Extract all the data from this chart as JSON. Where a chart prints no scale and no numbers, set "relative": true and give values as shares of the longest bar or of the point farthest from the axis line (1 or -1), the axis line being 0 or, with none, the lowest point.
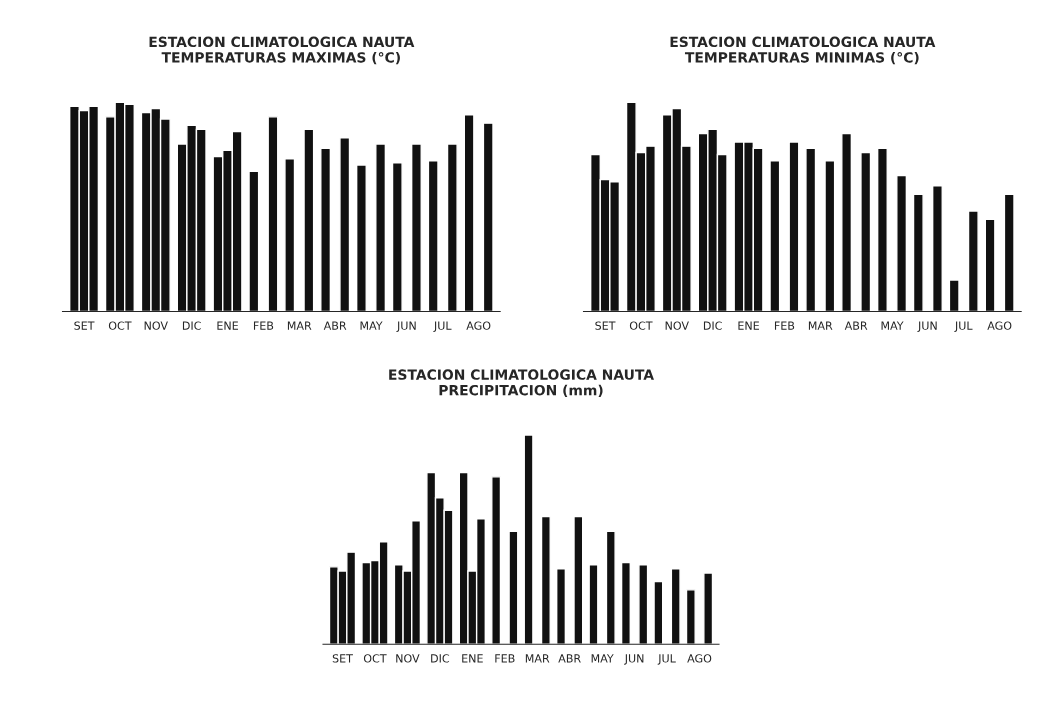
{
  "chart_data": [
    {
      "type": "bar",
      "title": "ESTACION CLIMATOLOGICA NAUTA\nTEMPERATURAS MAXIMAS (°C)",
      "relative": true,
      "grid": false,
      "legend": false,
      "categories": [
        "SET",
        "OCT",
        "NOV",
        "DIC",
        "ENE",
        "FEB",
        "MAR",
        "ABR",
        "MAY",
        "JUN",
        "JUL",
        "AGO"
      ],
      "series": [
        {
          "color": "#111111",
          "values": [
            0.98,
            0.93,
            0.95,
            0.8,
            0.74,
            0.67,
            0.73,
            0.78,
            0.7,
            0.71,
            0.72,
            0.94
          ]
        },
        {
          "color": "#111111",
          "values": [
            0.96,
            1.0,
            0.97,
            0.89,
            0.77,
            null,
            null,
            null,
            null,
            null,
            null,
            null
          ]
        },
        {
          "color": "#111111",
          "values": [
            0.98,
            0.99,
            0.92,
            0.87,
            0.86,
            0.93,
            0.87,
            0.83,
            0.8,
            0.8,
            0.8,
            0.9
          ]
        }
      ]
    },
    {
      "type": "bar",
      "title": "ESTACION CLIMATOLOGICA NAUTA\nTEMPERATURAS MINIMAS (°C)",
      "relative": true,
      "grid": false,
      "legend": false,
      "categories": [
        "SET",
        "OCT",
        "NOV",
        "DIC",
        "ENE",
        "FEB",
        "MAR",
        "ABR",
        "MAY",
        "JUN",
        "JUL",
        "AGO"
      ],
      "series": [
        {
          "color": "#111111",
          "values": [
            0.75,
            1.0,
            0.94,
            0.85,
            0.81,
            0.72,
            0.78,
            0.85,
            0.78,
            0.56,
            0.15,
            0.44
          ]
        },
        {
          "color": "#111111",
          "values": [
            0.63,
            0.76,
            0.97,
            0.87,
            0.81,
            null,
            null,
            null,
            null,
            null,
            null,
            null
          ]
        },
        {
          "color": "#111111",
          "values": [
            0.62,
            0.79,
            0.79,
            0.75,
            0.78,
            0.81,
            0.72,
            0.76,
            0.65,
            0.6,
            0.48,
            0.56
          ]
        }
      ]
    },
    {
      "type": "bar",
      "title": "ESTACION CLIMATOLOGICA NAUTA\nPRECIPITACION (mm)",
      "relative": true,
      "grid": false,
      "legend": false,
      "categories": [
        "SET",
        "OCT",
        "NOV",
        "DIC",
        "ENE",
        "FEB",
        "MAR",
        "ABR",
        "MAY",
        "JUN",
        "JUL",
        "AGO"
      ],
      "series": [
        {
          "color": "#111111",
          "values": [
            0.37,
            0.39,
            0.38,
            0.82,
            0.82,
            0.8,
            1.0,
            0.36,
            0.38,
            0.39,
            0.3,
            0.26
          ]
        },
        {
          "color": "#111111",
          "values": [
            0.35,
            0.4,
            0.35,
            0.7,
            0.35,
            null,
            null,
            null,
            null,
            null,
            null,
            null
          ]
        },
        {
          "color": "#111111",
          "values": [
            0.44,
            0.49,
            0.59,
            0.64,
            0.6,
            0.54,
            0.61,
            0.61,
            0.54,
            0.38,
            0.36,
            0.34
          ]
        }
      ]
    }
  ]
}
